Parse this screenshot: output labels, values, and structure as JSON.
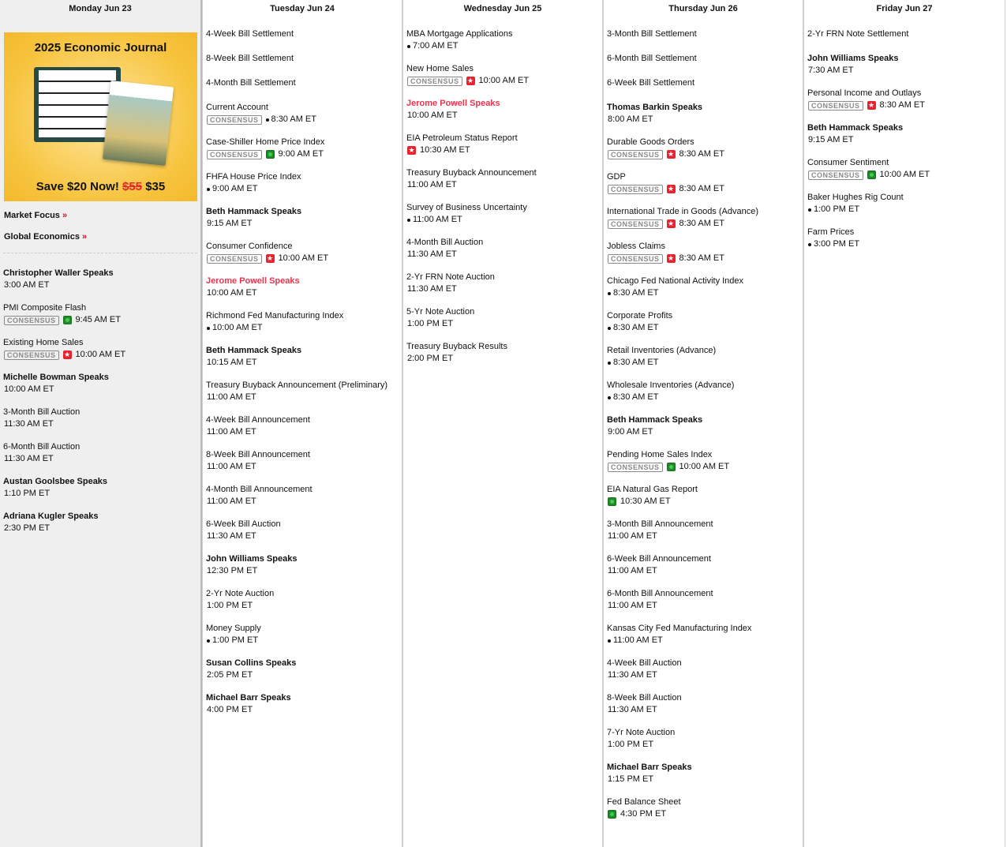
{
  "ad": {
    "title": "2025 Economic Journal",
    "save": "Save $20 Now!",
    "old_price": "$55",
    "new_price": "$35"
  },
  "links": [
    {
      "label": "Market Focus",
      "chev": "»"
    },
    {
      "label": "Global Economics",
      "chev": "»"
    }
  ],
  "consensus_label": "CONSENSUS",
  "colors": {
    "red_speaker": "#e8344e",
    "star_icon": "#e8232f",
    "plus_icon": "#1e8a2a"
  },
  "days": [
    {
      "header": "Monday Jun 23",
      "events": [
        {
          "t": "Christopher Waller Speaks",
          "s": "b",
          "tm": "3:00 AM ET"
        },
        {
          "t": "PMI Composite Flash",
          "c": true,
          "i": "plus",
          "tm": "9:45 AM ET"
        },
        {
          "t": "Existing Home Sales",
          "c": true,
          "i": "star",
          "tm": "10:00 AM ET"
        },
        {
          "t": "Michelle Bowman Speaks",
          "s": "b",
          "tm": "10:00 AM ET"
        },
        {
          "t": "3-Month Bill Auction",
          "tm": "11:30 AM ET"
        },
        {
          "t": "6-Month Bill Auction",
          "tm": "11:30 AM ET"
        },
        {
          "t": "Austan Goolsbee Speaks",
          "s": "b",
          "tm": "1:10 PM ET"
        },
        {
          "t": "Adriana Kugler Speaks",
          "s": "b",
          "tm": "2:30 PM ET"
        }
      ]
    },
    {
      "header": "Tuesday Jun 24",
      "events": [
        {
          "t": "4-Week Bill Settlement"
        },
        {
          "t": "8-Week Bill Settlement"
        },
        {
          "t": "4-Month Bill Settlement"
        },
        {
          "t": "Current Account",
          "c": true,
          "i": "dot",
          "tm": "8:30 AM ET"
        },
        {
          "t": "Case-Shiller Home Price Index",
          "c": true,
          "i": "plus",
          "tm": "9:00 AM ET"
        },
        {
          "t": "FHFA House Price Index",
          "i": "dot",
          "tm": "9:00 AM ET"
        },
        {
          "t": "Beth Hammack Speaks",
          "s": "b",
          "tm": "9:15 AM ET"
        },
        {
          "t": "Consumer Confidence",
          "c": true,
          "i": "star",
          "tm": "10:00 AM ET"
        },
        {
          "t": "Jerome Powell Speaks",
          "s": "r",
          "tm": "10:00 AM ET"
        },
        {
          "t": "Richmond Fed Manufacturing Index",
          "i": "dot",
          "tm": "10:00 AM ET"
        },
        {
          "t": "Beth Hammack Speaks",
          "s": "b",
          "tm": "10:15 AM ET"
        },
        {
          "t": "Treasury Buyback Announcement (Preliminary)",
          "tm": "11:00 AM ET"
        },
        {
          "t": "4-Week Bill Announcement",
          "tm": "11:00 AM ET"
        },
        {
          "t": "8-Week Bill Announcement",
          "tm": "11:00 AM ET"
        },
        {
          "t": "4-Month Bill Announcement",
          "tm": "11:00 AM ET"
        },
        {
          "t": "6-Week Bill Auction",
          "tm": "11:30 AM ET"
        },
        {
          "t": "John Williams Speaks",
          "s": "b",
          "tm": "12:30 PM ET"
        },
        {
          "t": "2-Yr Note Auction",
          "tm": "1:00 PM ET"
        },
        {
          "t": "Money Supply",
          "i": "dot",
          "tm": "1:00 PM ET"
        },
        {
          "t": "Susan Collins Speaks",
          "s": "b",
          "tm": "2:05 PM ET"
        },
        {
          "t": "Michael Barr Speaks",
          "s": "b",
          "tm": "4:00 PM ET"
        }
      ]
    },
    {
      "header": "Wednesday Jun 25",
      "events": [
        {
          "t": "MBA Mortgage Applications",
          "i": "dot",
          "tm": "7:00 AM ET"
        },
        {
          "t": "New Home Sales",
          "c": true,
          "i": "star",
          "tm": "10:00 AM ET"
        },
        {
          "t": "Jerome Powell Speaks",
          "s": "r",
          "tm": "10:00 AM ET"
        },
        {
          "t": "EIA Petroleum Status Report",
          "i": "star",
          "tm": "10:30 AM ET"
        },
        {
          "t": "Treasury Buyback Announcement",
          "tm": "11:00 AM ET"
        },
        {
          "t": "Survey of Business Uncertainty",
          "i": "dot",
          "tm": "11:00 AM ET"
        },
        {
          "t": "4-Month Bill Auction",
          "tm": "11:30 AM ET"
        },
        {
          "t": "2-Yr FRN Note Auction",
          "tm": "11:30 AM ET"
        },
        {
          "t": "5-Yr Note Auction",
          "tm": "1:00 PM ET"
        },
        {
          "t": "Treasury Buyback Results",
          "tm": "2:00 PM ET"
        }
      ]
    },
    {
      "header": "Thursday Jun 26",
      "events": [
        {
          "t": "3-Month Bill Settlement"
        },
        {
          "t": "6-Month Bill Settlement"
        },
        {
          "t": "6-Week Bill Settlement"
        },
        {
          "t": "Thomas Barkin Speaks",
          "s": "b",
          "tm": "8:00 AM ET"
        },
        {
          "t": "Durable Goods Orders",
          "c": true,
          "i": "star",
          "tm": "8:30 AM ET"
        },
        {
          "t": "GDP",
          "c": true,
          "i": "star",
          "tm": "8:30 AM ET"
        },
        {
          "t": "International Trade in Goods (Advance)",
          "c": true,
          "i": "star",
          "tm": "8:30 AM ET"
        },
        {
          "t": "Jobless Claims",
          "c": true,
          "i": "star",
          "tm": "8:30 AM ET"
        },
        {
          "t": "Chicago Fed National Activity Index",
          "i": "dot",
          "tm": "8:30 AM ET"
        },
        {
          "t": "Corporate Profits",
          "i": "dot",
          "tm": "8:30 AM ET"
        },
        {
          "t": "Retail Inventories (Advance)",
          "i": "dot",
          "tm": "8:30 AM ET"
        },
        {
          "t": "Wholesale Inventories (Advance)",
          "i": "dot",
          "tm": "8:30 AM ET"
        },
        {
          "t": "Beth Hammack Speaks",
          "s": "b",
          "tm": "9:00 AM ET"
        },
        {
          "t": "Pending Home Sales Index",
          "c": true,
          "i": "plus",
          "tm": "10:00 AM ET"
        },
        {
          "t": "EIA Natural Gas Report",
          "i": "plus",
          "tm": "10:30 AM ET"
        },
        {
          "t": "3-Month Bill Announcement",
          "tm": "11:00 AM ET"
        },
        {
          "t": "6-Week Bill Announcement",
          "tm": "11:00 AM ET"
        },
        {
          "t": "6-Month Bill Announcement",
          "tm": "11:00 AM ET"
        },
        {
          "t": "Kansas City Fed Manufacturing Index",
          "i": "dot",
          "tm": "11:00 AM ET"
        },
        {
          "t": "4-Week Bill Auction",
          "tm": "11:30 AM ET"
        },
        {
          "t": "8-Week Bill Auction",
          "tm": "11:30 AM ET"
        },
        {
          "t": "7-Yr Note Auction",
          "tm": "1:00 PM ET"
        },
        {
          "t": "Michael Barr Speaks",
          "s": "b",
          "tm": "1:15 PM ET"
        },
        {
          "t": "Fed Balance Sheet",
          "i": "plus",
          "tm": "4:30 PM ET"
        }
      ]
    },
    {
      "header": "Friday Jun 27",
      "events": [
        {
          "t": "2-Yr FRN Note Settlement"
        },
        {
          "t": "John Williams Speaks",
          "s": "b",
          "tm": "7:30 AM ET"
        },
        {
          "t": "Personal Income and Outlays",
          "c": true,
          "i": "star",
          "tm": "8:30 AM ET"
        },
        {
          "t": "Beth Hammack Speaks",
          "s": "b",
          "tm": "9:15 AM ET"
        },
        {
          "t": "Consumer Sentiment",
          "c": true,
          "i": "plus",
          "tm": "10:00 AM ET"
        },
        {
          "t": "Baker Hughes Rig Count",
          "i": "dot",
          "tm": "1:00 PM ET"
        },
        {
          "t": "Farm Prices",
          "i": "dot",
          "tm": "3:00 PM ET"
        }
      ]
    }
  ]
}
